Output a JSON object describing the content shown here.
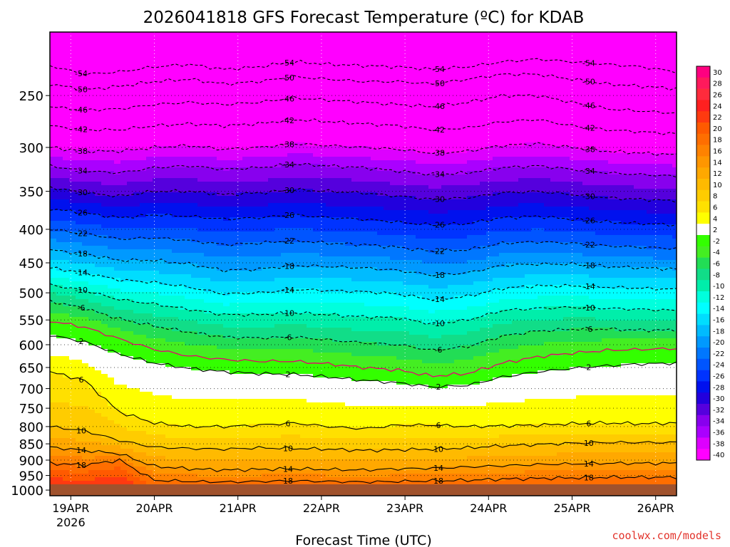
{
  "chart_data": {
    "type": "heatmap",
    "title": "2026041818 GFS Forecast Temperature (ºC) for KDAB",
    "xlabel": "Forecast Time (UTC)",
    "ylabel": "",
    "credit": "coolwx.com/models",
    "x_ticks": [
      {
        "label": "19APR",
        "sub": "2026",
        "hour": 6
      },
      {
        "label": "20APR",
        "sub": "",
        "hour": 30
      },
      {
        "label": "21APR",
        "sub": "",
        "hour": 54
      },
      {
        "label": "22APR",
        "sub": "",
        "hour": 78
      },
      {
        "label": "23APR",
        "sub": "",
        "hour": 102
      },
      {
        "label": "24APR",
        "sub": "",
        "hour": 126
      },
      {
        "label": "25APR",
        "sub": "",
        "hour": 150
      },
      {
        "label": "26APR",
        "sub": "",
        "hour": 174
      }
    ],
    "x_range_hours": [
      0,
      180
    ],
    "y_ticks": [
      250,
      300,
      350,
      400,
      450,
      500,
      550,
      600,
      650,
      700,
      750,
      800,
      850,
      900,
      950,
      1000
    ],
    "y_range_hpa": [
      1020,
      200
    ],
    "y_scale": "log-pressure",
    "colorbar": {
      "labels": [
        "30",
        "28",
        "26",
        "24",
        "22",
        "20",
        "18",
        "16",
        "14",
        "12",
        "10",
        "8",
        "6",
        "4",
        "2",
        "-2",
        "-4",
        "-6",
        "-8",
        "-10",
        "-12",
        "-14",
        "-16",
        "-18",
        "-20",
        "-22",
        "-24",
        "-26",
        "-28",
        "-30",
        "-32",
        "-34",
        "-36",
        "-38",
        "-40"
      ],
      "colors": [
        "#ff0080",
        "#ff1a5c",
        "#ff2b3c",
        "#ff2020",
        "#ff3a10",
        "#ff5a00",
        "#ff6e00",
        "#ff8200",
        "#ff9600",
        "#ffa800",
        "#ffba00",
        "#ffcc00",
        "#ffe000",
        "#ffff00",
        "#ffffff",
        "#33ff00",
        "#44ee22",
        "#22dd55",
        "#11dd88",
        "#00eeaa",
        "#00ffdd",
        "#00ffff",
        "#00ddff",
        "#00bbff",
        "#0099ff",
        "#0077ff",
        "#0055ff",
        "#0033ff",
        "#0011ee",
        "#2200dd",
        "#5500dd",
        "#8800ee",
        "#aa00ff",
        "#dd00ff",
        "#ff00ff"
      ]
    },
    "isotherms": [
      {
        "label": "-54",
        "temp": -54,
        "p": [
          225,
          232,
          230,
          226,
          224,
          228,
          226,
          222,
          224,
          225,
          226,
          228,
          226,
          222,
          220,
          222,
          224,
          226,
          230
        ]
      },
      {
        "label": "-50",
        "temp": -50,
        "p": [
          240,
          245,
          242,
          238,
          236,
          240,
          238,
          234,
          236,
          238,
          238,
          240,
          236,
          232,
          232,
          236,
          240,
          242,
          244
        ]
      },
      {
        "label": "-46",
        "temp": -46,
        "p": [
          260,
          263,
          262,
          258,
          256,
          258,
          256,
          252,
          254,
          256,
          258,
          260,
          256,
          250,
          250,
          256,
          262,
          264,
          266
        ]
      },
      {
        "label": "-42",
        "temp": -42,
        "p": [
          278,
          282,
          282,
          278,
          276,
          278,
          276,
          272,
          274,
          276,
          278,
          282,
          280,
          274,
          272,
          278,
          282,
          284,
          286
        ]
      },
      {
        "label": "-38",
        "temp": -38,
        "p": [
          300,
          304,
          304,
          300,
          298,
          302,
          300,
          296,
          298,
          300,
          302,
          306,
          304,
          298,
          296,
          300,
          304,
          306,
          308
        ]
      },
      {
        "label": "-34",
        "temp": -34,
        "p": [
          320,
          326,
          328,
          322,
          320,
          324,
          322,
          318,
          320,
          322,
          326,
          330,
          328,
          322,
          320,
          324,
          328,
          330,
          332
        ]
      },
      {
        "label": "-30",
        "temp": -30,
        "p": [
          345,
          352,
          356,
          350,
          350,
          354,
          352,
          348,
          350,
          352,
          356,
          360,
          358,
          352,
          350,
          354,
          358,
          360,
          362
        ]
      },
      {
        "label": "-26",
        "temp": -26,
        "p": [
          372,
          378,
          384,
          380,
          382,
          386,
          384,
          380,
          384,
          386,
          390,
          394,
          392,
          384,
          382,
          386,
          390,
          392,
          394
        ]
      },
      {
        "label": "-22",
        "temp": -22,
        "p": [
          400,
          406,
          414,
          412,
          416,
          422,
          420,
          416,
          420,
          422,
          426,
          432,
          430,
          420,
          418,
          420,
          424,
          426,
          428
        ]
      },
      {
        "label": "-18",
        "temp": -18,
        "p": [
          430,
          436,
          446,
          446,
          452,
          462,
          460,
          454,
          456,
          458,
          462,
          470,
          466,
          454,
          452,
          452,
          456,
          458,
          460
        ]
      },
      {
        "label": "-14",
        "temp": -14,
        "p": [
          458,
          466,
          478,
          482,
          490,
          502,
          500,
          494,
          496,
          498,
          502,
          512,
          506,
          492,
          488,
          488,
          490,
          492,
          494
        ]
      },
      {
        "label": "-10",
        "temp": -10,
        "p": [
          486,
          496,
          512,
          520,
          530,
          540,
          540,
          536,
          540,
          544,
          546,
          558,
          550,
          532,
          528,
          526,
          528,
          530,
          532
        ]
      },
      {
        "label": "-6",
        "temp": -6,
        "p": [
          515,
          528,
          548,
          562,
          574,
          584,
          586,
          584,
          590,
          596,
          600,
          612,
          604,
          582,
          572,
          568,
          568,
          570,
          570
        ]
      },
      {
        "label": "-2",
        "temp": -2,
        "p": [
          552,
          564,
          588,
          610,
          624,
          632,
          636,
          636,
          642,
          650,
          656,
          670,
          664,
          640,
          626,
          618,
          612,
          610,
          608
        ]
      },
      {
        "label": "2",
        "temp": 2,
        "p": [
          580,
          594,
          620,
          640,
          652,
          660,
          664,
          666,
          672,
          680,
          686,
          696,
          692,
          672,
          660,
          652,
          646,
          642,
          640
        ]
      },
      {
        "label": "6",
        "temp": 6,
        "p": [
          660,
          680,
          760,
          790,
          800,
          800,
          796,
          790,
          800,
          806,
          796,
          796,
          800,
          798,
          796,
          792,
          790,
          792,
          790
        ]
      },
      {
        "label": "10",
        "temp": 10,
        "p": [
          800,
          812,
          840,
          860,
          864,
          866,
          862,
          864,
          866,
          870,
          868,
          866,
          862,
          856,
          852,
          848,
          846,
          846,
          846
        ]
      },
      {
        "label": "14",
        "temp": 14,
        "p": [
          860,
          870,
          880,
          920,
          928,
          932,
          930,
          928,
          930,
          932,
          928,
          926,
          922,
          918,
          914,
          912,
          910,
          910,
          910
        ]
      },
      {
        "label": "18",
        "temp": 18,
        "p": [
          910,
          916,
          900,
          966,
          970,
          972,
          970,
          968,
          970,
          972,
          970,
          968,
          966,
          962,
          960,
          958,
          956,
          956,
          956
        ]
      }
    ]
  }
}
